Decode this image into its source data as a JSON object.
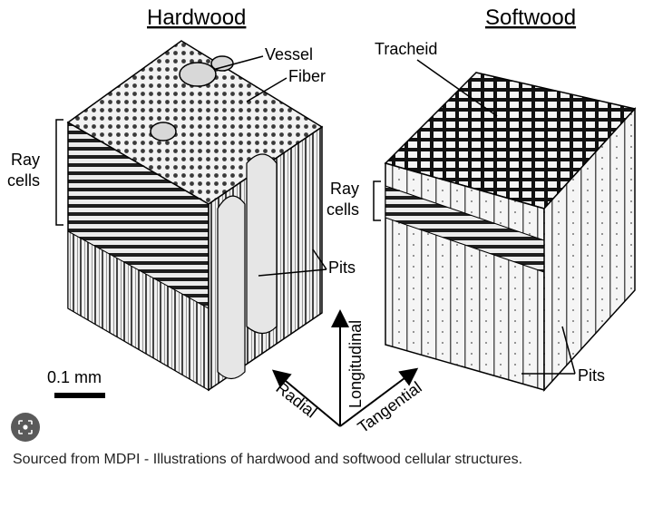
{
  "titles": {
    "hardwood": "Hardwood",
    "softwood": "Softwood"
  },
  "hardwood_labels": {
    "vessel": "Vessel",
    "fiber": "Fiber",
    "ray_cells_line1": "Ray",
    "ray_cells_line2": "cells",
    "pits": "Pits"
  },
  "softwood_labels": {
    "tracheid": "Tracheid",
    "ray_cells_line1": "Ray",
    "ray_cells_line2": "cells",
    "pits": "Pits"
  },
  "scale_bar": {
    "label": "0.1 mm"
  },
  "axes": {
    "longitudinal": "Longitudinal",
    "radial": "Radial",
    "tangential": "Tangential"
  },
  "caption": "Sourced from MDPI - Illustrations of hardwood and softwood cellular structures.",
  "icons": {
    "lens": "google-lens-icon"
  }
}
